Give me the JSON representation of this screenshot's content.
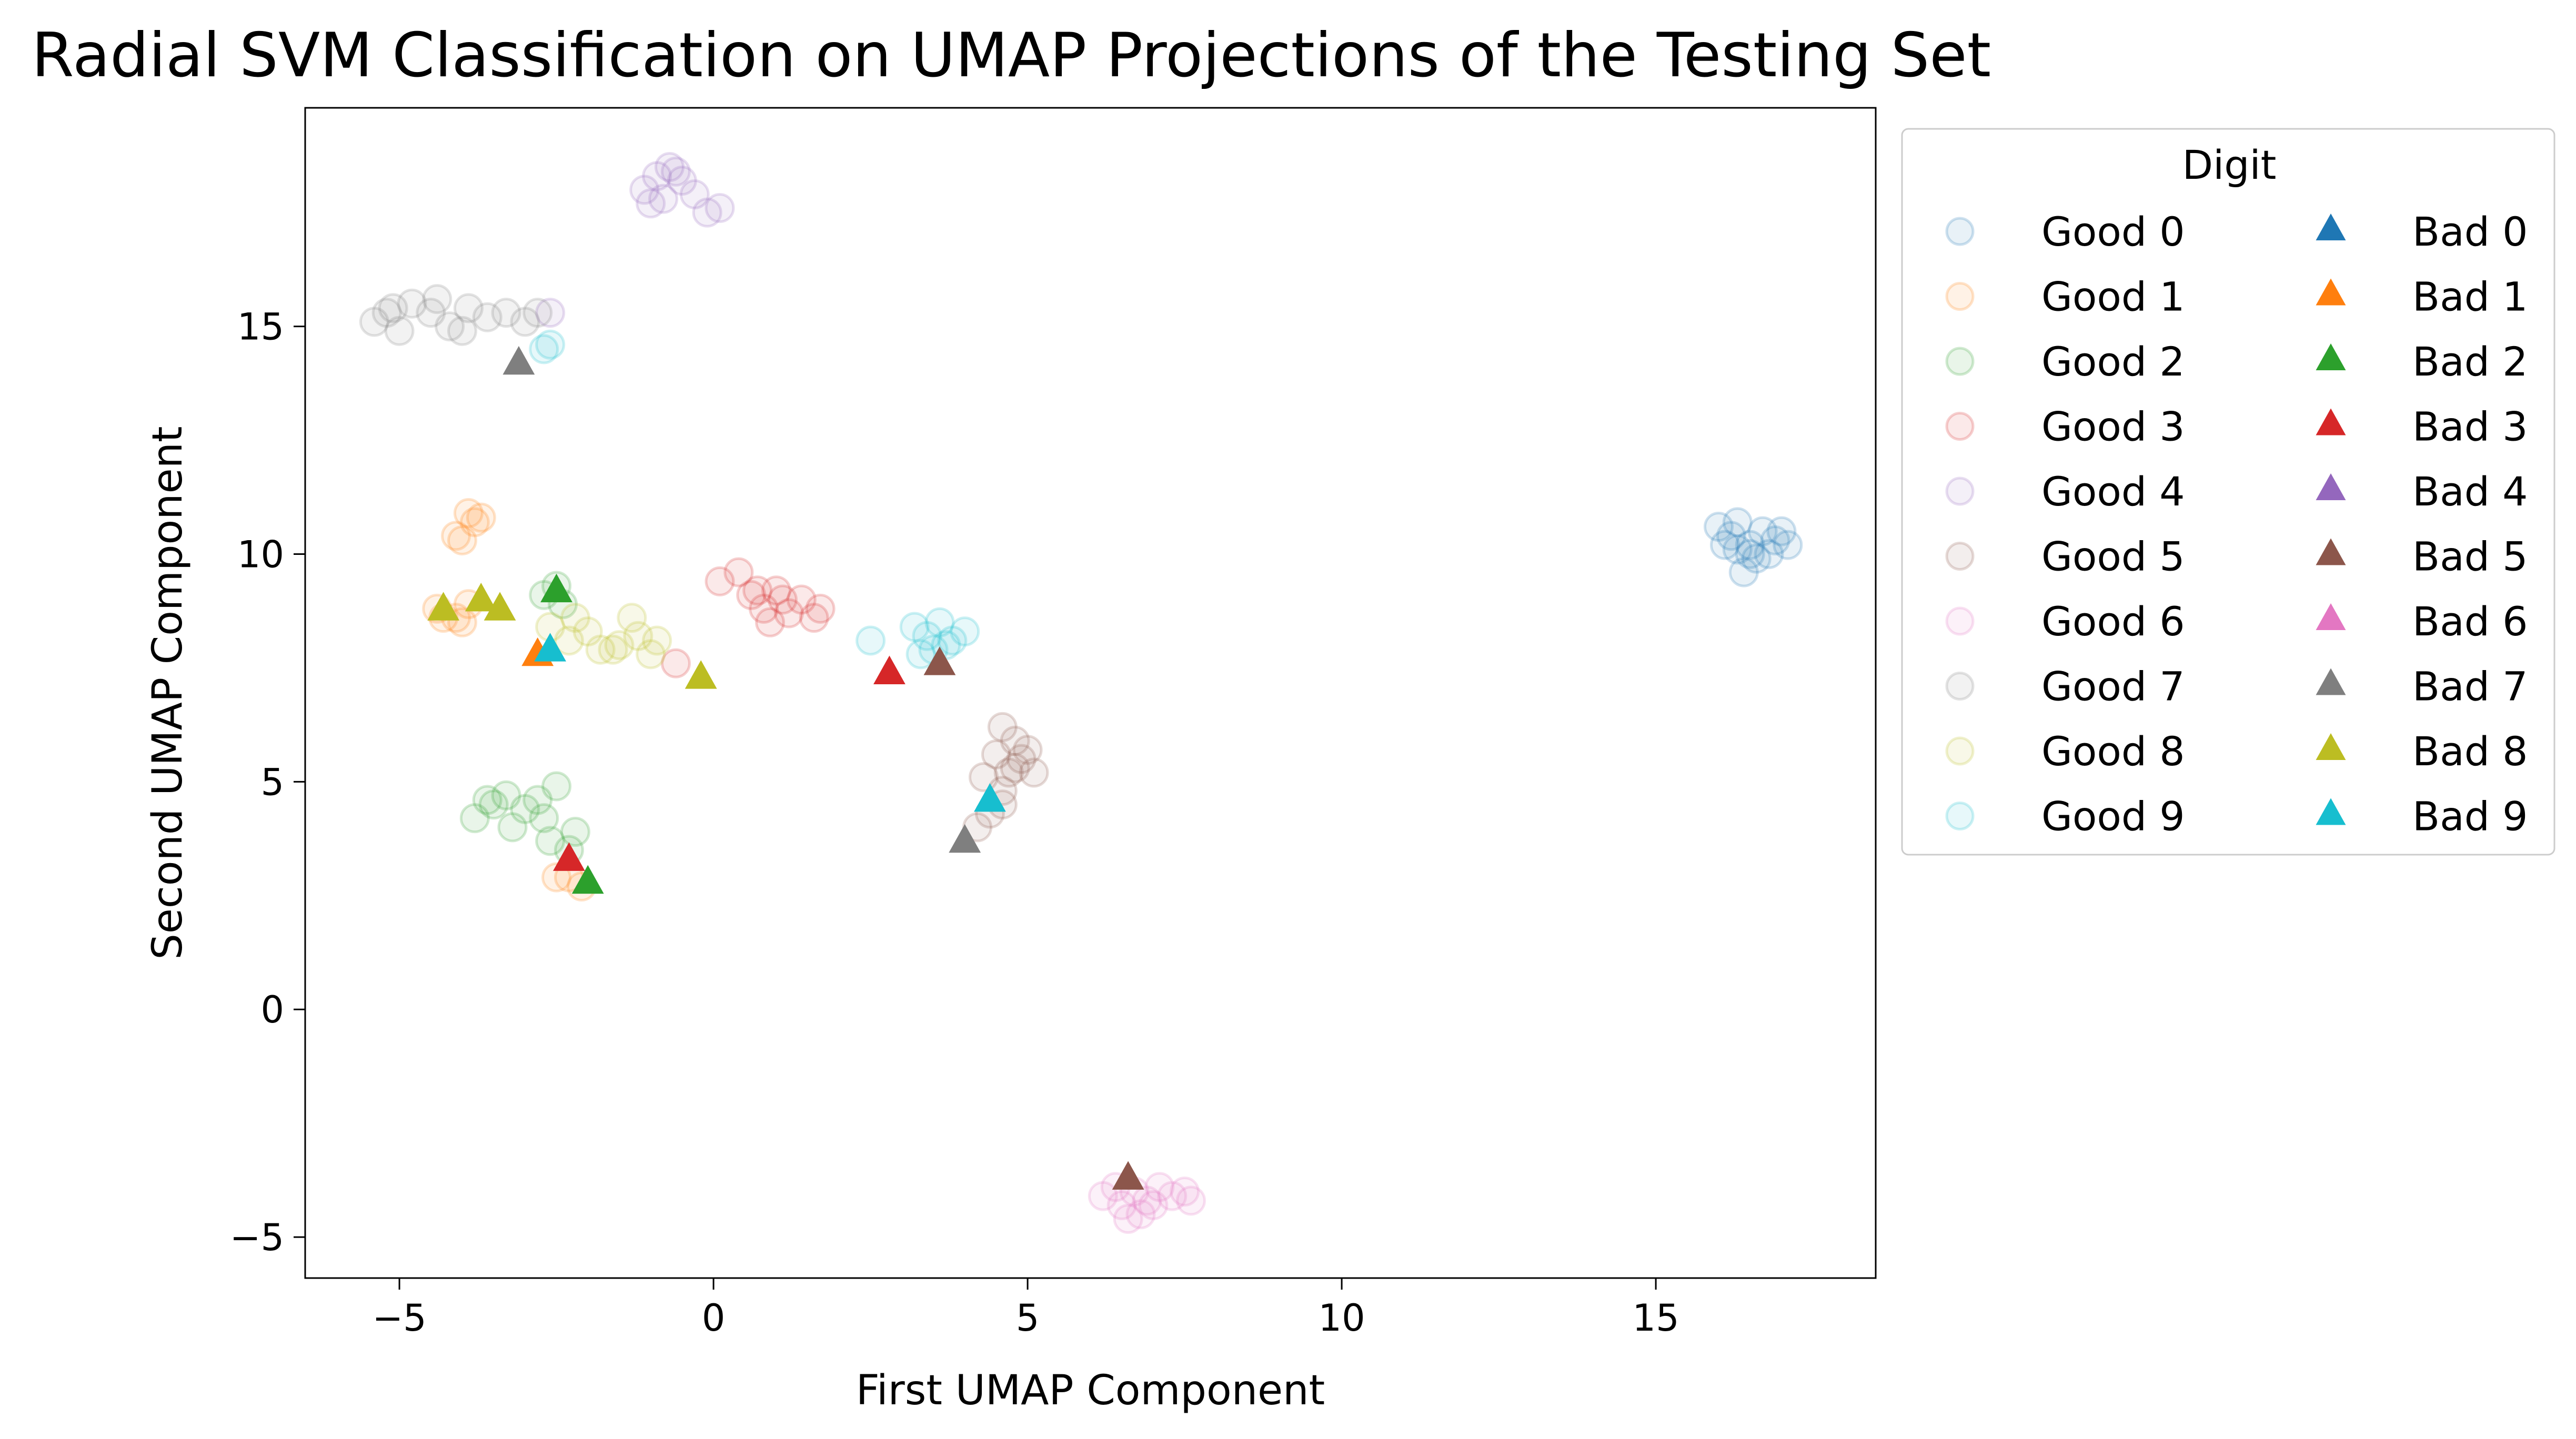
{
  "chart_data": {
    "type": "scatter",
    "title": "Radial SVM Classification on UMAP Projections of the Testing Set",
    "xlabel": "First UMAP Component",
    "ylabel": "Second UMAP Component",
    "xlim": [
      -6.5,
      18.5
    ],
    "ylim": [
      -5.9,
      19.8
    ],
    "xticks": [
      -5,
      0,
      5,
      10,
      15
    ],
    "yticks": [
      -5,
      0,
      5,
      10,
      15
    ],
    "grid": false,
    "legend": {
      "title": "Digit",
      "placement": "outside-right",
      "columns": 2
    },
    "colors": {
      "0": "#1f77b4",
      "1": "#ff7f0e",
      "2": "#2ca02c",
      "3": "#d62728",
      "4": "#9467bd",
      "5": "#8c564b",
      "6": "#e377c2",
      "7": "#7f7f7f",
      "8": "#bcbd22",
      "9": "#17becf"
    },
    "series": [
      {
        "name": "Good 0",
        "marker": "circle",
        "points": [
          [
            16.0,
            10.6
          ],
          [
            16.2,
            10.4
          ],
          [
            16.3,
            10.7
          ],
          [
            16.5,
            10.2
          ],
          [
            16.7,
            10.5
          ],
          [
            16.9,
            10.3
          ],
          [
            17.0,
            10.5
          ],
          [
            16.4,
            9.6
          ],
          [
            16.6,
            9.9
          ],
          [
            16.1,
            10.2
          ],
          [
            16.8,
            10.0
          ],
          [
            17.1,
            10.2
          ],
          [
            16.5,
            10.0
          ],
          [
            16.3,
            10.1
          ]
        ]
      },
      {
        "name": "Good 1",
        "marker": "circle",
        "points": [
          [
            -3.9,
            10.9
          ],
          [
            -4.1,
            10.4
          ],
          [
            -3.8,
            10.7
          ],
          [
            -4.0,
            10.3
          ],
          [
            -3.7,
            10.8
          ],
          [
            -4.4,
            8.8
          ],
          [
            -4.1,
            8.6
          ],
          [
            -3.9,
            8.9
          ],
          [
            -4.3,
            8.6
          ],
          [
            -4.0,
            8.5
          ],
          [
            -2.3,
            2.9
          ],
          [
            -2.1,
            2.7
          ],
          [
            -2.5,
            2.9
          ]
        ]
      },
      {
        "name": "Good 2",
        "marker": "circle",
        "points": [
          [
            -3.8,
            4.2
          ],
          [
            -3.5,
            4.5
          ],
          [
            -3.3,
            4.7
          ],
          [
            -3.0,
            4.4
          ],
          [
            -2.8,
            4.6
          ],
          [
            -2.5,
            4.9
          ],
          [
            -2.7,
            4.2
          ],
          [
            -3.2,
            4.0
          ],
          [
            -2.6,
            3.7
          ],
          [
            -2.3,
            3.5
          ],
          [
            -2.2,
            3.9
          ],
          [
            -3.6,
            4.6
          ],
          [
            -2.5,
            9.3
          ],
          [
            -2.4,
            8.9
          ],
          [
            -2.7,
            9.1
          ]
        ]
      },
      {
        "name": "Good 3",
        "marker": "circle",
        "points": [
          [
            0.1,
            9.4
          ],
          [
            0.4,
            9.6
          ],
          [
            0.6,
            9.1
          ],
          [
            0.8,
            8.8
          ],
          [
            1.0,
            9.2
          ],
          [
            1.2,
            8.7
          ],
          [
            1.4,
            9.0
          ],
          [
            1.6,
            8.6
          ],
          [
            0.9,
            8.5
          ],
          [
            1.1,
            9.0
          ],
          [
            0.7,
            9.2
          ],
          [
            -0.6,
            7.6
          ],
          [
            1.7,
            8.8
          ]
        ]
      },
      {
        "name": "Good 4",
        "marker": "circle",
        "points": [
          [
            -1.1,
            18.0
          ],
          [
            -0.9,
            18.3
          ],
          [
            -0.7,
            18.5
          ],
          [
            -0.5,
            18.2
          ],
          [
            -0.8,
            17.8
          ],
          [
            -0.3,
            17.9
          ],
          [
            -0.1,
            17.5
          ],
          [
            -0.6,
            18.4
          ],
          [
            -1.0,
            17.7
          ],
          [
            0.1,
            17.6
          ],
          [
            -2.6,
            15.3
          ]
        ]
      },
      {
        "name": "Good 5",
        "marker": "circle",
        "points": [
          [
            4.6,
            6.2
          ],
          [
            4.8,
            5.9
          ],
          [
            4.9,
            5.5
          ],
          [
            4.7,
            5.2
          ],
          [
            4.5,
            5.6
          ],
          [
            4.3,
            5.1
          ],
          [
            4.6,
            4.8
          ],
          [
            4.8,
            5.3
          ],
          [
            5.0,
            5.7
          ],
          [
            5.1,
            5.2
          ],
          [
            4.4,
            4.3
          ],
          [
            4.2,
            4.0
          ],
          [
            4.6,
            4.5
          ]
        ]
      },
      {
        "name": "Good 6",
        "marker": "circle",
        "points": [
          [
            6.2,
            -4.1
          ],
          [
            6.5,
            -4.3
          ],
          [
            6.7,
            -4.0
          ],
          [
            6.9,
            -4.2
          ],
          [
            7.1,
            -3.9
          ],
          [
            7.3,
            -4.1
          ],
          [
            7.5,
            -4.0
          ],
          [
            6.8,
            -4.5
          ],
          [
            6.4,
            -3.9
          ],
          [
            7.6,
            -4.2
          ],
          [
            6.6,
            -4.6
          ],
          [
            7.0,
            -4.3
          ]
        ]
      },
      {
        "name": "Good 7",
        "marker": "circle",
        "points": [
          [
            -5.4,
            15.1
          ],
          [
            -5.1,
            15.4
          ],
          [
            -4.8,
            15.5
          ],
          [
            -4.5,
            15.3
          ],
          [
            -4.2,
            15.0
          ],
          [
            -3.9,
            15.4
          ],
          [
            -3.6,
            15.2
          ],
          [
            -3.3,
            15.3
          ],
          [
            -3.0,
            15.1
          ],
          [
            -5.0,
            14.9
          ],
          [
            -4.4,
            15.6
          ],
          [
            -4.0,
            14.9
          ],
          [
            -2.8,
            15.3
          ],
          [
            -5.2,
            15.3
          ]
        ]
      },
      {
        "name": "Good 8",
        "marker": "circle",
        "points": [
          [
            -2.6,
            8.4
          ],
          [
            -2.3,
            8.1
          ],
          [
            -2.0,
            8.3
          ],
          [
            -1.8,
            7.9
          ],
          [
            -1.5,
            8.0
          ],
          [
            -1.2,
            8.2
          ],
          [
            -1.0,
            7.8
          ],
          [
            -1.3,
            8.6
          ],
          [
            -2.2,
            8.6
          ],
          [
            -1.6,
            7.9
          ],
          [
            -0.9,
            8.1
          ]
        ]
      },
      {
        "name": "Good 9",
        "marker": "circle",
        "points": [
          [
            3.2,
            8.4
          ],
          [
            3.4,
            8.2
          ],
          [
            3.6,
            8.5
          ],
          [
            3.8,
            8.1
          ],
          [
            4.0,
            8.3
          ],
          [
            3.5,
            7.9
          ],
          [
            3.3,
            7.8
          ],
          [
            3.7,
            8.0
          ],
          [
            2.5,
            8.1
          ],
          [
            -2.6,
            14.6
          ],
          [
            -2.7,
            14.5
          ]
        ]
      },
      {
        "name": "Bad 0",
        "marker": "triangle",
        "points": []
      },
      {
        "name": "Bad 1",
        "marker": "triangle",
        "points": [
          [
            -2.8,
            7.8
          ]
        ]
      },
      {
        "name": "Bad 2",
        "marker": "triangle",
        "points": [
          [
            -2.5,
            9.2
          ],
          [
            -2.0,
            2.8
          ]
        ]
      },
      {
        "name": "Bad 3",
        "marker": "triangle",
        "points": [
          [
            2.8,
            7.4
          ],
          [
            -2.3,
            3.3
          ]
        ]
      },
      {
        "name": "Bad 4",
        "marker": "triangle",
        "points": []
      },
      {
        "name": "Bad 5",
        "marker": "triangle",
        "points": [
          [
            3.6,
            7.6
          ],
          [
            6.6,
            -3.7
          ]
        ]
      },
      {
        "name": "Bad 6",
        "marker": "triangle",
        "points": []
      },
      {
        "name": "Bad 7",
        "marker": "triangle",
        "points": [
          [
            -3.1,
            14.2
          ],
          [
            4.0,
            3.7
          ]
        ]
      },
      {
        "name": "Bad 8",
        "marker": "triangle",
        "points": [
          [
            -4.3,
            8.8
          ],
          [
            -3.7,
            9.0
          ],
          [
            -3.4,
            8.8
          ],
          [
            -0.2,
            7.3
          ]
        ]
      },
      {
        "name": "Bad 9",
        "marker": "triangle",
        "points": [
          [
            -2.6,
            7.9
          ],
          [
            4.4,
            4.6
          ]
        ]
      }
    ]
  }
}
